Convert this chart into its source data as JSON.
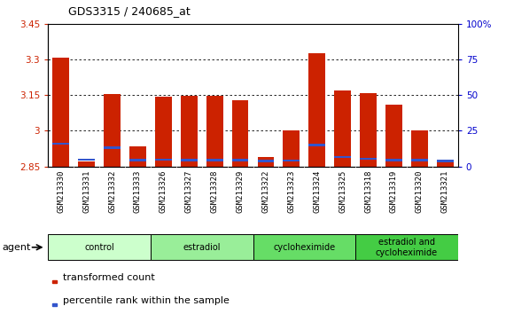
{
  "title": "GDS3315 / 240685_at",
  "samples": [
    "GSM213330",
    "GSM213331",
    "GSM213332",
    "GSM213333",
    "GSM213326",
    "GSM213327",
    "GSM213328",
    "GSM213329",
    "GSM213322",
    "GSM213323",
    "GSM213324",
    "GSM213325",
    "GSM213318",
    "GSM213319",
    "GSM213320",
    "GSM213321"
  ],
  "red_values": [
    3.305,
    2.872,
    3.155,
    2.935,
    3.142,
    3.148,
    3.148,
    3.128,
    2.888,
    3.002,
    3.325,
    3.168,
    3.157,
    3.108,
    3.002,
    2.875
  ],
  "blue_values": [
    2.945,
    2.878,
    2.928,
    2.876,
    2.878,
    2.877,
    2.877,
    2.877,
    2.874,
    2.875,
    2.94,
    2.89,
    2.882,
    2.876,
    2.877,
    2.874
  ],
  "ymin": 2.85,
  "ymax": 3.45,
  "yticks": [
    2.85,
    3.0,
    3.15,
    3.3,
    3.45
  ],
  "ytick_labels": [
    "2.85",
    "3",
    "3.15",
    "3.3",
    "3.45"
  ],
  "right_yticks": [
    0,
    25,
    50,
    75,
    100
  ],
  "right_ytick_labels": [
    "0",
    "25",
    "50",
    "75",
    "100%"
  ],
  "groups": [
    {
      "label": "control",
      "start": 0,
      "end": 3,
      "color": "#ccffcc"
    },
    {
      "label": "estradiol",
      "start": 4,
      "end": 7,
      "color": "#99ee99"
    },
    {
      "label": "cycloheximide",
      "start": 8,
      "end": 11,
      "color": "#66dd66"
    },
    {
      "label": "estradiol and\ncycloheximide",
      "start": 12,
      "end": 15,
      "color": "#44cc44"
    }
  ],
  "bar_color": "#cc2200",
  "blue_color": "#3355cc",
  "bar_width": 0.65,
  "background_color": "#ffffff",
  "plot_bg_color": "#ffffff",
  "grid_color": "#000000",
  "tick_label_color_left": "#cc2200",
  "tick_label_color_right": "#0000cc",
  "legend_labels": [
    "transformed count",
    "percentile rank within the sample"
  ],
  "agent_label": "agent"
}
